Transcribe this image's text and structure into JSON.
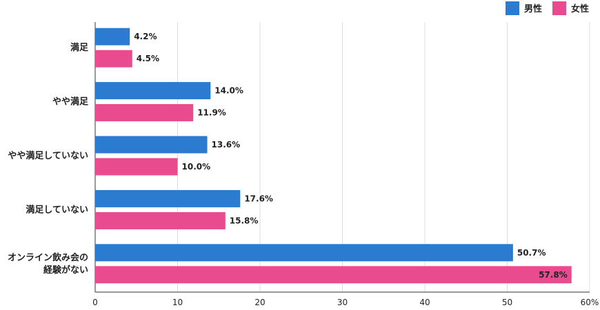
{
  "chart_data": {
    "type": "bar",
    "orientation": "horizontal",
    "categories": [
      [
        "満足"
      ],
      [
        "やや満足"
      ],
      [
        "やや満足していない"
      ],
      [
        "満足していない"
      ],
      [
        "オンライン飲み会の",
        "経験がない"
      ]
    ],
    "series": [
      {
        "name": "男性",
        "color": "#2b7bd0",
        "values": [
          4.2,
          14.0,
          13.6,
          17.6,
          50.7
        ]
      },
      {
        "name": "女性",
        "color": "#e84c8f",
        "values": [
          4.5,
          11.9,
          10.0,
          15.8,
          57.8
        ]
      }
    ],
    "value_labels": [
      [
        "4.2%",
        "14.0%",
        "13.6%",
        "17.6%",
        "50.7%"
      ],
      [
        "4.5%",
        "11.9%",
        "10.0%",
        "15.8%",
        "57.8%"
      ]
    ],
    "xticks": [
      "0",
      "10",
      "20",
      "30",
      "40",
      "50",
      "60%"
    ],
    "xlim": [
      0,
      60
    ],
    "grid": true,
    "legend_position": "top-right"
  }
}
